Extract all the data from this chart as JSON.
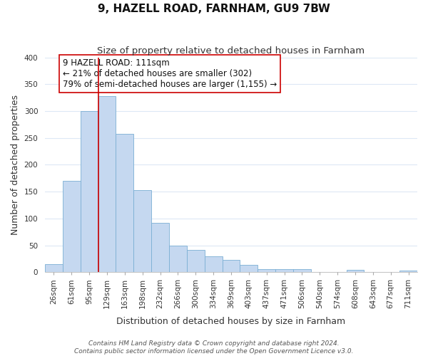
{
  "title": "9, HAZELL ROAD, FARNHAM, GU9 7BW",
  "subtitle": "Size of property relative to detached houses in Farnham",
  "xlabel": "Distribution of detached houses by size in Farnham",
  "ylabel": "Number of detached properties",
  "bar_labels": [
    "26sqm",
    "61sqm",
    "95sqm",
    "129sqm",
    "163sqm",
    "198sqm",
    "232sqm",
    "266sqm",
    "300sqm",
    "334sqm",
    "369sqm",
    "403sqm",
    "437sqm",
    "471sqm",
    "506sqm",
    "540sqm",
    "574sqm",
    "608sqm",
    "643sqm",
    "677sqm",
    "711sqm"
  ],
  "bar_values": [
    15,
    170,
    300,
    328,
    258,
    153,
    92,
    50,
    42,
    29,
    23,
    13,
    5,
    5,
    5,
    0,
    0,
    4,
    0,
    0,
    3
  ],
  "bar_color": "#c5d8f0",
  "bar_edge_color": "#7bafd4",
  "vline_color": "#cc0000",
  "annotation_text": "9 HAZELL ROAD: 111sqm\n← 21% of detached houses are smaller (302)\n79% of semi-detached houses are larger (1,155) →",
  "annotation_box_edgecolor": "#cc0000",
  "ylim": [
    0,
    400
  ],
  "yticks": [
    0,
    50,
    100,
    150,
    200,
    250,
    300,
    350,
    400
  ],
  "footer1": "Contains HM Land Registry data © Crown copyright and database right 2024.",
  "footer2": "Contains public sector information licensed under the Open Government Licence v3.0.",
  "bg_color": "#ffffff",
  "plot_bg_color": "#ffffff",
  "grid_color": "#dde8f5",
  "title_fontsize": 11,
  "subtitle_fontsize": 9.5,
  "axis_label_fontsize": 9,
  "tick_fontsize": 7.5,
  "annotation_fontsize": 8.5,
  "footer_fontsize": 6.5
}
